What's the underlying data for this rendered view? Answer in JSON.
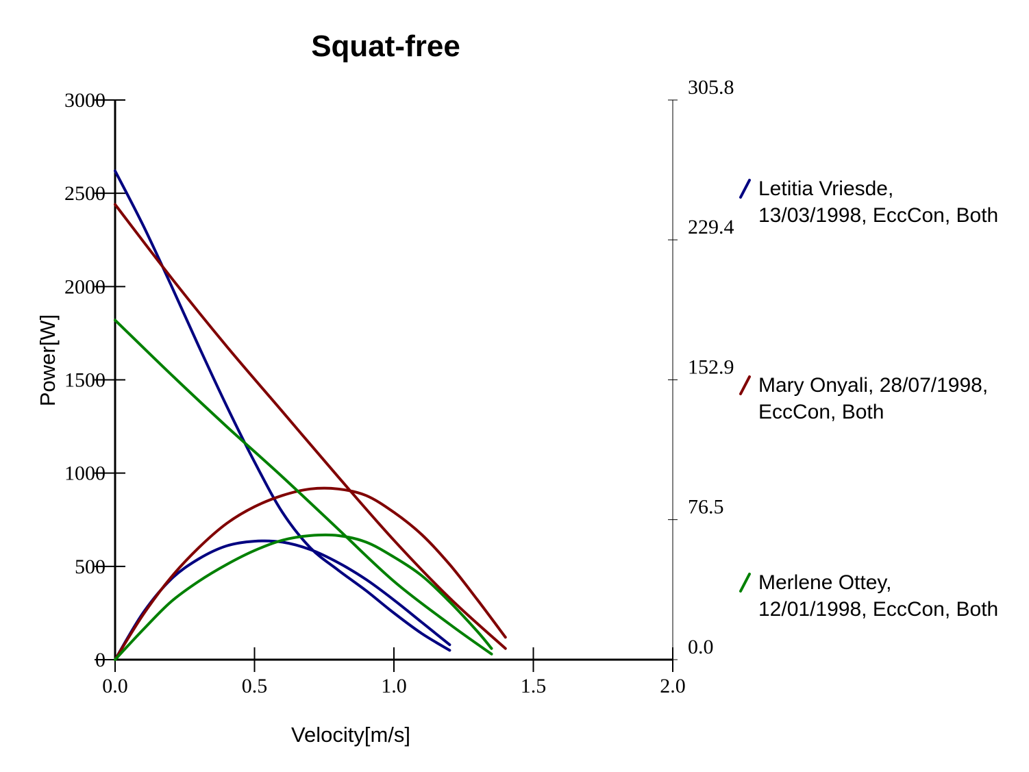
{
  "chart_data": {
    "type": "line",
    "title": "Squat-free",
    "xlabel": "Velocity[m/s]",
    "ylabel": "Power[W]",
    "xlim": [
      0,
      2.0
    ],
    "ylim": [
      0,
      3000
    ],
    "x_ticks": [
      "0.0",
      "0.5",
      "1.0",
      "1.5",
      "2.0"
    ],
    "y_ticks": [
      "0",
      "500",
      "1000",
      "1500",
      "2000",
      "2500",
      "3000"
    ],
    "y2lim": [
      0,
      305.8
    ],
    "y2_ticks": [
      "0.0",
      "76.5",
      "152.9",
      "229.4",
      "305.8"
    ],
    "grid": false,
    "legend_position": "right",
    "series": [
      {
        "name": "Letitia Vriesde, 13/03/1998, EccCon, Both",
        "legend_lines": [
          "Letitia Vriesde,",
          "13/03/1998, EccCon, Both"
        ],
        "color": "#000080",
        "curves": [
          {
            "x": [
              0,
              0.1,
              0.2,
              0.3,
              0.4,
              0.5,
              0.6,
              0.7,
              0.8,
              0.9,
              1.0,
              1.1,
              1.2
            ],
            "y": [
              2620,
              2330,
              2010,
              1680,
              1360,
              1060,
              790,
              600,
              480,
              370,
              250,
              140,
              50
            ]
          },
          {
            "x": [
              0,
              0.1,
              0.2,
              0.3,
              0.4,
              0.5,
              0.6,
              0.7,
              0.8,
              0.9,
              1.0,
              1.1,
              1.2
            ],
            "y": [
              0,
              250,
              430,
              540,
              610,
              635,
              630,
              590,
              520,
              430,
              320,
              200,
              80
            ]
          }
        ]
      },
      {
        "name": "Mary Onyali, 28/07/1998, EccCon, Both",
        "legend_lines": [
          "Mary Onyali, 28/07/1998,",
          "EccCon, Both"
        ],
        "color": "#800000",
        "curves": [
          {
            "x": [
              0,
              0.2,
              0.4,
              0.6,
              0.8,
              1.0,
              1.2,
              1.4
            ],
            "y": [
              2440,
              2050,
              1680,
              1330,
              980,
              640,
              330,
              60
            ]
          },
          {
            "x": [
              0,
              0.1,
              0.2,
              0.3,
              0.4,
              0.5,
              0.6,
              0.7,
              0.8,
              0.9,
              1.0,
              1.1,
              1.2,
              1.3,
              1.4
            ],
            "y": [
              0,
              240,
              440,
              600,
              730,
              820,
              880,
              915,
              915,
              880,
              790,
              670,
              510,
              320,
              120
            ]
          }
        ]
      },
      {
        "name": "Merlene Ottey, 12/01/1998, EccCon, Both",
        "legend_lines": [
          "Merlene Ottey,",
          "12/01/1998, EccCon, Both"
        ],
        "color": "#008000",
        "curves": [
          {
            "x": [
              0,
              0.2,
              0.4,
              0.6,
              0.8,
              1.0,
              1.2,
              1.35
            ],
            "y": [
              1820,
              1530,
              1250,
              980,
              700,
              420,
              190,
              30
            ]
          },
          {
            "x": [
              0,
              0.1,
              0.2,
              0.3,
              0.4,
              0.5,
              0.6,
              0.7,
              0.8,
              0.9,
              1.0,
              1.1,
              1.2,
              1.3,
              1.35
            ],
            "y": [
              0,
              160,
              310,
              420,
              510,
              585,
              640,
              665,
              665,
              630,
              550,
              450,
              310,
              150,
              60
            ]
          }
        ]
      }
    ]
  }
}
